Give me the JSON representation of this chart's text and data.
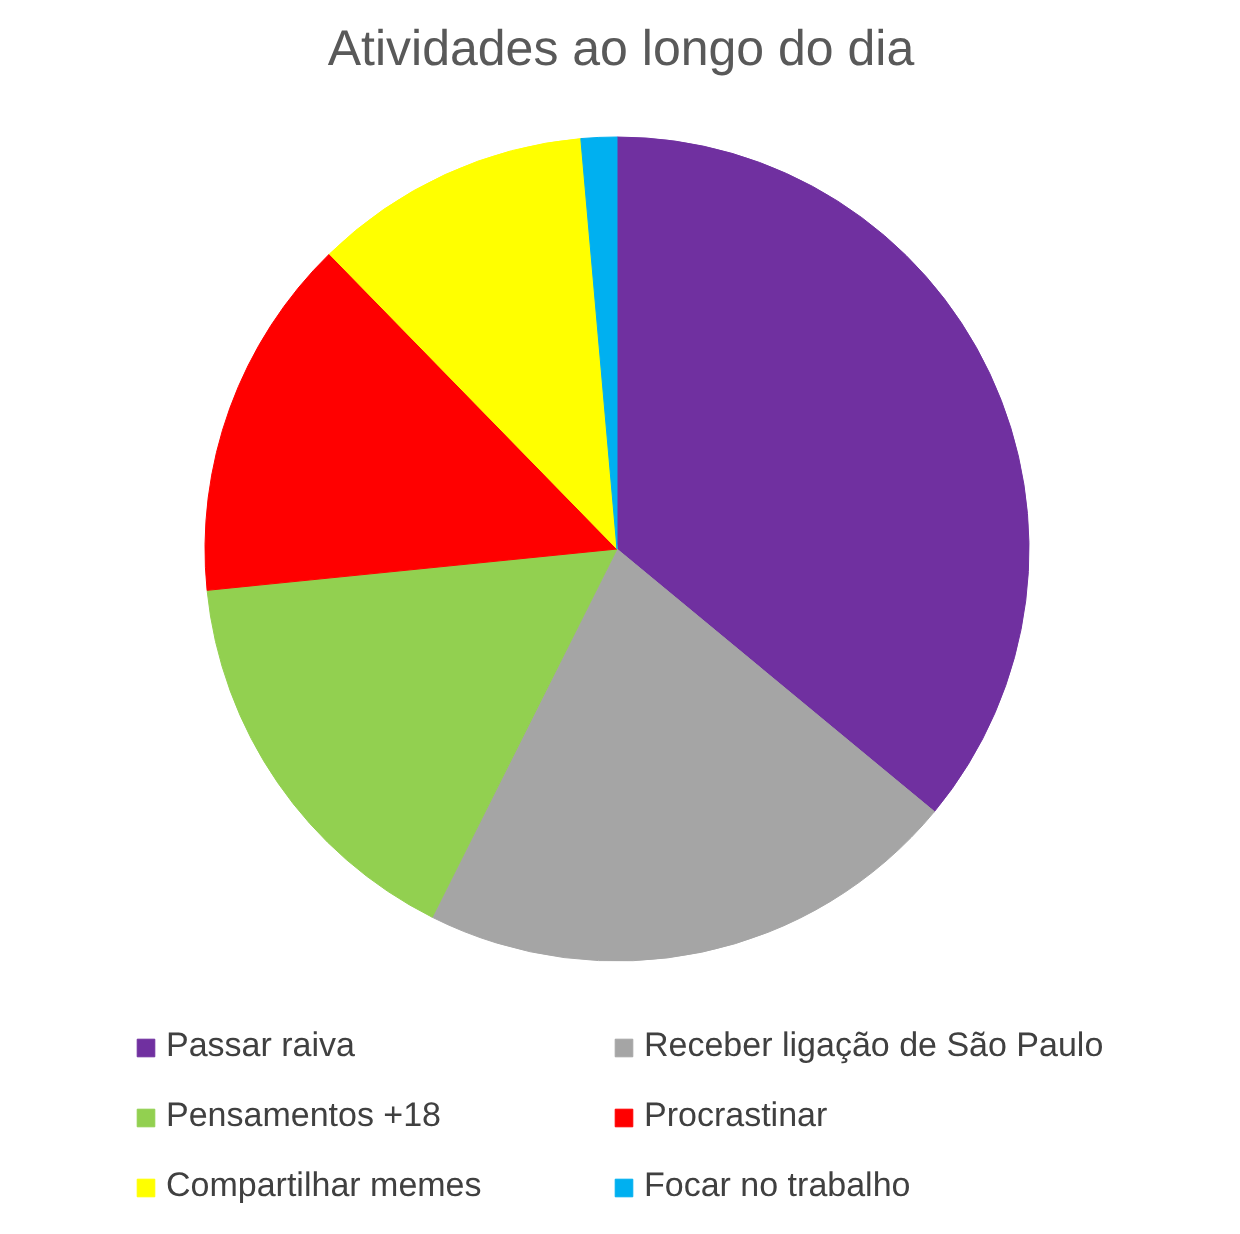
{
  "chart_data": {
    "type": "pie",
    "title": "Atividades ao longo do dia",
    "categories": [
      "Passar raiva",
      "Receber ligação de São Paulo",
      "Pensamentos +18",
      "Procrastinar",
      "Compartilhar memes",
      "Focar no trabalho"
    ],
    "values": [
      36.0,
      21.4,
      16.0,
      14.3,
      10.9,
      1.4
    ],
    "colors": [
      "#7030a0",
      "#a5a5a5",
      "#92d050",
      "#ff0000",
      "#ffff00",
      "#00b0f0"
    ],
    "legend": "bottom"
  }
}
